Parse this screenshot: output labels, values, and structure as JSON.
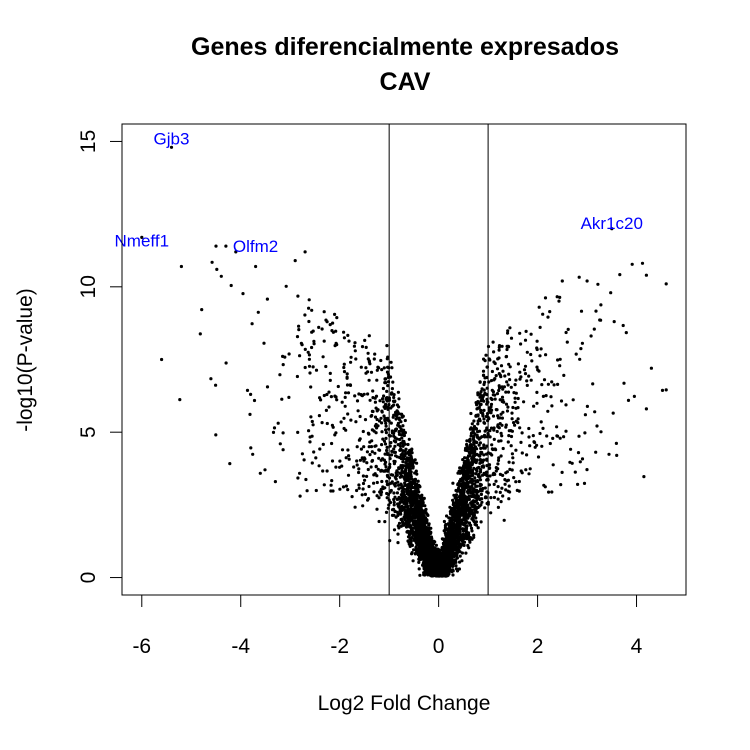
{
  "chart_data": {
    "type": "scatter",
    "title": "Genes diferencialmente expresados",
    "subtitle": "CAV",
    "xlabel": "Log2 Fold Change",
    "ylabel": "-log10(P-value)",
    "xlim": [
      -6.4,
      5.0
    ],
    "ylim": [
      -0.6,
      15.6
    ],
    "xticks": [
      -6,
      -4,
      -2,
      0,
      2,
      4
    ],
    "yticks": [
      0,
      5,
      10,
      15
    ],
    "vlines": [
      -1,
      1
    ],
    "grid": false,
    "point_color": "#000000",
    "annotation_color": "#0000ff",
    "annotations": [
      {
        "label": "Gjb3",
        "x": -5.4,
        "y": 15.1
      },
      {
        "label": "Nmeff1",
        "x": -6.0,
        "y": 11.6
      },
      {
        "label": "Olfm2",
        "x": -3.7,
        "y": 11.4
      },
      {
        "label": "Akr1c20",
        "x": 3.5,
        "y": 12.2
      }
    ],
    "highlighted_points": [
      {
        "x": -5.4,
        "y": 14.8
      },
      {
        "x": -6.0,
        "y": 11.7
      },
      {
        "x": -4.1,
        "y": 11.2
      },
      {
        "x": 3.5,
        "y": 12.0
      },
      {
        "x": -5.6,
        "y": 7.5
      },
      {
        "x": -5.2,
        "y": 10.7
      },
      {
        "x": -4.5,
        "y": 11.4
      },
      {
        "x": -4.3,
        "y": 11.4
      },
      {
        "x": -3.7,
        "y": 10.7
      },
      {
        "x": -2.9,
        "y": 10.9
      },
      {
        "x": -2.7,
        "y": 11.2
      },
      {
        "x": -3.8,
        "y": 6.3
      },
      {
        "x": -3.2,
        "y": 4.6
      },
      {
        "x": -3.3,
        "y": 3.3
      },
      {
        "x": -2.8,
        "y": 2.8
      },
      {
        "x": 4.2,
        "y": 10.4
      },
      {
        "x": 4.6,
        "y": 10.1
      },
      {
        "x": 4.3,
        "y": 7.2
      },
      {
        "x": 4.2,
        "y": 5.8
      },
      {
        "x": 3.6,
        "y": 4.2
      },
      {
        "x": 3.0,
        "y": 10.2
      },
      {
        "x": 2.5,
        "y": 10.2
      }
    ],
    "n_points": 4200,
    "distribution": "volcano: bulk near |log2FC| < 1 with p-values rising steeply as |log2FC| increases; sparse extreme points on both tails"
  }
}
